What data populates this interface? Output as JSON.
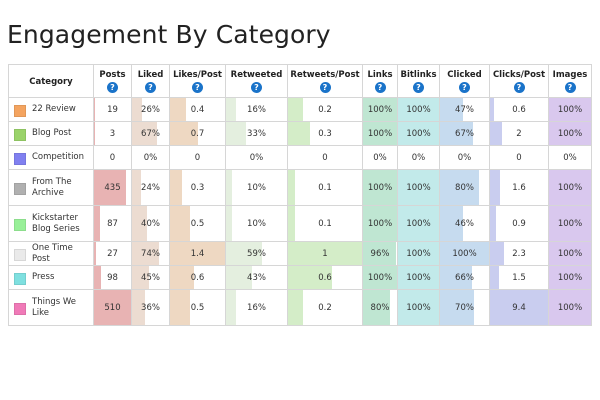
{
  "title": "Engagement By Category",
  "help_glyph": "?",
  "columns": [
    {
      "key": "posts",
      "label": "Posts",
      "color": "#e8b3b3",
      "max": 510
    },
    {
      "key": "liked",
      "label": "Liked",
      "color": "#ecdcd1",
      "max": 100
    },
    {
      "key": "likes_post",
      "label": "Likes/Post",
      "color": "#eed8c2",
      "max": 1.4
    },
    {
      "key": "retweeted",
      "label": "Retweeted",
      "color": "#e4efdf",
      "max": 100
    },
    {
      "key": "retweets_post",
      "label": "Retweets/Post",
      "color": "#d4edc8",
      "max": 1
    },
    {
      "key": "links",
      "label": "Links",
      "color": "#bfe6d2",
      "max": 100
    },
    {
      "key": "bitlinks",
      "label": "Bitlinks",
      "color": "#c2eaea",
      "max": 100
    },
    {
      "key": "clicked",
      "label": "Clicked",
      "color": "#c6dbef",
      "max": 100
    },
    {
      "key": "clicks_post",
      "label": "Clicks/Post",
      "color": "#c9cdef",
      "max": 9.4
    },
    {
      "key": "images",
      "label": "Images",
      "color": "#d9c8ee",
      "max": 100
    }
  ],
  "category_header": "Category",
  "rows": [
    {
      "category": "22 Review",
      "color": "#f4a460",
      "posts": {
        "text": "19",
        "v": 19
      },
      "liked": {
        "text": "26%",
        "v": 26
      },
      "likes_post": {
        "text": "0.4",
        "v": 0.4
      },
      "retweeted": {
        "text": "16%",
        "v": 16
      },
      "retweets_post": {
        "text": "0.2",
        "v": 0.2
      },
      "links": {
        "text": "100%",
        "v": 100
      },
      "bitlinks": {
        "text": "100%",
        "v": 100
      },
      "clicked": {
        "text": "47%",
        "v": 47
      },
      "clicks_post": {
        "text": "0.6",
        "v": 0.6
      },
      "images": {
        "text": "100%",
        "v": 100
      }
    },
    {
      "category": "Blog Post",
      "color": "#9ad36a",
      "posts": {
        "text": "3",
        "v": 3
      },
      "liked": {
        "text": "67%",
        "v": 67
      },
      "likes_post": {
        "text": "0.7",
        "v": 0.7
      },
      "retweeted": {
        "text": "33%",
        "v": 33
      },
      "retweets_post": {
        "text": "0.3",
        "v": 0.3
      },
      "links": {
        "text": "100%",
        "v": 100
      },
      "bitlinks": {
        "text": "100%",
        "v": 100
      },
      "clicked": {
        "text": "67%",
        "v": 67
      },
      "clicks_post": {
        "text": "2",
        "v": 2
      },
      "images": {
        "text": "100%",
        "v": 100
      }
    },
    {
      "category": "Competition",
      "color": "#8080f0",
      "posts": {
        "text": "0",
        "v": 0
      },
      "liked": {
        "text": "0%",
        "v": 0
      },
      "likes_post": {
        "text": "0",
        "v": 0
      },
      "retweeted": {
        "text": "0%",
        "v": 0
      },
      "retweets_post": {
        "text": "0",
        "v": 0
      },
      "links": {
        "text": "0%",
        "v": 0
      },
      "bitlinks": {
        "text": "0%",
        "v": 0
      },
      "clicked": {
        "text": "0%",
        "v": 0
      },
      "clicks_post": {
        "text": "0",
        "v": 0
      },
      "images": {
        "text": "0%",
        "v": 0
      }
    },
    {
      "category": "From The Archive",
      "color": "#b0b0b0",
      "posts": {
        "text": "435",
        "v": 435
      },
      "liked": {
        "text": "24%",
        "v": 24
      },
      "likes_post": {
        "text": "0.3",
        "v": 0.3
      },
      "retweeted": {
        "text": "10%",
        "v": 10
      },
      "retweets_post": {
        "text": "0.1",
        "v": 0.1
      },
      "links": {
        "text": "100%",
        "v": 100
      },
      "bitlinks": {
        "text": "100%",
        "v": 100
      },
      "clicked": {
        "text": "80%",
        "v": 80
      },
      "clicks_post": {
        "text": "1.6",
        "v": 1.6
      },
      "images": {
        "text": "100%",
        "v": 100
      }
    },
    {
      "category": "Kickstarter Blog Series",
      "color": "#98f098",
      "posts": {
        "text": "87",
        "v": 87
      },
      "liked": {
        "text": "40%",
        "v": 40
      },
      "likes_post": {
        "text": "0.5",
        "v": 0.5
      },
      "retweeted": {
        "text": "10%",
        "v": 10
      },
      "retweets_post": {
        "text": "0.1",
        "v": 0.1
      },
      "links": {
        "text": "100%",
        "v": 100
      },
      "bitlinks": {
        "text": "100%",
        "v": 100
      },
      "clicked": {
        "text": "46%",
        "v": 46
      },
      "clicks_post": {
        "text": "0.9",
        "v": 0.9
      },
      "images": {
        "text": "100%",
        "v": 100
      }
    },
    {
      "category": "One Time Post",
      "color": "#eaeaea",
      "posts": {
        "text": "27",
        "v": 27
      },
      "liked": {
        "text": "74%",
        "v": 74
      },
      "likes_post": {
        "text": "1.4",
        "v": 1.4
      },
      "retweeted": {
        "text": "59%",
        "v": 59
      },
      "retweets_post": {
        "text": "1",
        "v": 1
      },
      "links": {
        "text": "96%",
        "v": 96
      },
      "bitlinks": {
        "text": "100%",
        "v": 100
      },
      "clicked": {
        "text": "100%",
        "v": 100
      },
      "clicks_post": {
        "text": "2.3",
        "v": 2.3
      },
      "images": {
        "text": "100%",
        "v": 100
      }
    },
    {
      "category": "Press",
      "color": "#7fe0e0",
      "posts": {
        "text": "98",
        "v": 98
      },
      "liked": {
        "text": "45%",
        "v": 45
      },
      "likes_post": {
        "text": "0.6",
        "v": 0.6
      },
      "retweeted": {
        "text": "43%",
        "v": 43
      },
      "retweets_post": {
        "text": "0.6",
        "v": 0.6
      },
      "links": {
        "text": "100%",
        "v": 100
      },
      "bitlinks": {
        "text": "100%",
        "v": 100
      },
      "clicked": {
        "text": "66%",
        "v": 66
      },
      "clicks_post": {
        "text": "1.5",
        "v": 1.5
      },
      "images": {
        "text": "100%",
        "v": 100
      }
    },
    {
      "category": "Things We Like",
      "color": "#f07ab8",
      "posts": {
        "text": "510",
        "v": 510
      },
      "liked": {
        "text": "36%",
        "v": 36
      },
      "likes_post": {
        "text": "0.5",
        "v": 0.5
      },
      "retweeted": {
        "text": "16%",
        "v": 16
      },
      "retweets_post": {
        "text": "0.2",
        "v": 0.2
      },
      "links": {
        "text": "80%",
        "v": 80
      },
      "bitlinks": {
        "text": "100%",
        "v": 100
      },
      "clicked": {
        "text": "70%",
        "v": 70
      },
      "clicks_post": {
        "text": "9.4",
        "v": 9.4
      },
      "images": {
        "text": "100%",
        "v": 100
      }
    }
  ]
}
